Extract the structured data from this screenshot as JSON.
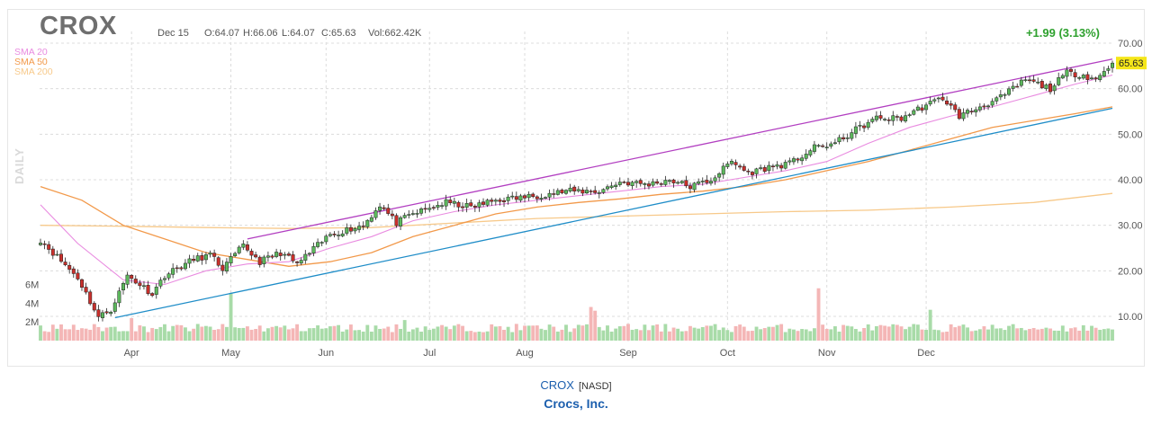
{
  "header": {
    "ticker": "CROX",
    "date": "Dec 15",
    "open": "O:64.07",
    "high": "H:66.06",
    "low": "L:64.07",
    "close": "C:65.63",
    "volume": "Vol:662.42K",
    "change": "+1.99 (3.13%)",
    "last_price": "65.63",
    "interval": "DAILY"
  },
  "legend": {
    "sma20": "SMA 20",
    "sma50": "SMA 50",
    "sma200": "SMA 200"
  },
  "footer": {
    "symbol": "CROX",
    "exchange": "[NASD]",
    "company": "Crocs, Inc."
  },
  "colors": {
    "up": "#5cb85c",
    "down": "#c9302c",
    "sma20": "#e98be0",
    "sma50": "#f2994a",
    "sma200": "#f7c98a",
    "trendUpper": "#b23fc1",
    "trendLower": "#1f8dc8",
    "volUp": "#a8dba8",
    "volDown": "#f4b6b6",
    "change": "#2ea12e",
    "lastPriceBg": "#f5e61a"
  },
  "chart_data": {
    "type": "candlestick",
    "y_axis": {
      "min": 0,
      "max": 70,
      "ticks": [
        "10.00",
        "20.00",
        "30.00",
        "40.00",
        "50.00",
        "60.00",
        "70.00"
      ],
      "position": "right"
    },
    "volume_axis": {
      "ticks": [
        "2M",
        "4M",
        "6M"
      ],
      "position": "left"
    },
    "x_labels": [
      "Apr",
      "May",
      "Jun",
      "Jul",
      "Aug",
      "Sep",
      "Oct",
      "Nov",
      "Dec"
    ],
    "price_keyframes": [
      {
        "t": 0,
        "p": 26.8
      },
      {
        "t": 9,
        "p": 18.5
      },
      {
        "t": 14,
        "p": 9.8
      },
      {
        "t": 17,
        "p": 11.5
      },
      {
        "t": 21,
        "p": 19
      },
      {
        "t": 27,
        "p": 15
      },
      {
        "t": 30,
        "p": 19
      },
      {
        "t": 37,
        "p": 22.5
      },
      {
        "t": 41,
        "p": 23.5
      },
      {
        "t": 44,
        "p": 20.5
      },
      {
        "t": 49,
        "p": 25.5
      },
      {
        "t": 53,
        "p": 22
      },
      {
        "t": 58,
        "p": 24
      },
      {
        "t": 62,
        "p": 21.5
      },
      {
        "t": 70,
        "p": 28
      },
      {
        "t": 74,
        "p": 29
      },
      {
        "t": 78,
        "p": 30
      },
      {
        "t": 82,
        "p": 34.5
      },
      {
        "t": 86,
        "p": 30.5
      },
      {
        "t": 90,
        "p": 32.5
      },
      {
        "t": 98,
        "p": 35
      },
      {
        "t": 104,
        "p": 34
      },
      {
        "t": 110,
        "p": 35.5
      },
      {
        "t": 120,
        "p": 36.5
      },
      {
        "t": 127,
        "p": 37.5
      },
      {
        "t": 135,
        "p": 37.5
      },
      {
        "t": 140,
        "p": 39.5
      },
      {
        "t": 147,
        "p": 39
      },
      {
        "t": 152,
        "p": 40
      },
      {
        "t": 157,
        "p": 38.5
      },
      {
        "t": 162,
        "p": 40
      },
      {
        "t": 167,
        "p": 44
      },
      {
        "t": 171,
        "p": 41.5
      },
      {
        "t": 177,
        "p": 43
      },
      {
        "t": 181,
        "p": 43.5
      },
      {
        "t": 187,
        "p": 47
      },
      {
        "t": 192,
        "p": 48
      },
      {
        "t": 197,
        "p": 51
      },
      {
        "t": 202,
        "p": 53.5
      },
      {
        "t": 208,
        "p": 53.5
      },
      {
        "t": 212,
        "p": 55.5
      },
      {
        "t": 218,
        "p": 58
      },
      {
        "t": 222,
        "p": 54
      },
      {
        "t": 227,
        "p": 56
      },
      {
        "t": 232,
        "p": 58
      },
      {
        "t": 238,
        "p": 62
      },
      {
        "t": 244,
        "p": 60
      },
      {
        "t": 248,
        "p": 63.5
      },
      {
        "t": 252,
        "p": 63
      },
      {
        "t": 255,
        "p": 62
      },
      {
        "t": 259,
        "p": 65.63
      }
    ],
    "sma20": [
      [
        0,
        34.5
      ],
      [
        9,
        26
      ],
      [
        20,
        18
      ],
      [
        30,
        17
      ],
      [
        40,
        20
      ],
      [
        50,
        21.5
      ],
      [
        60,
        22
      ],
      [
        70,
        25
      ],
      [
        80,
        27.5
      ],
      [
        90,
        31
      ],
      [
        100,
        33
      ],
      [
        110,
        34.5
      ],
      [
        120,
        35.5
      ],
      [
        130,
        36.5
      ],
      [
        140,
        37.5
      ],
      [
        150,
        38.5
      ],
      [
        160,
        39
      ],
      [
        170,
        40.5
      ],
      [
        180,
        42
      ],
      [
        190,
        44
      ],
      [
        200,
        48
      ],
      [
        210,
        51.5
      ],
      [
        220,
        54
      ],
      [
        230,
        56
      ],
      [
        240,
        58.5
      ],
      [
        250,
        61
      ],
      [
        259,
        63
      ]
    ],
    "sma50": [
      [
        0,
        38.5
      ],
      [
        10,
        35.5
      ],
      [
        20,
        30
      ],
      [
        30,
        27
      ],
      [
        40,
        24
      ],
      [
        50,
        22.5
      ],
      [
        60,
        21
      ],
      [
        70,
        22
      ],
      [
        80,
        24
      ],
      [
        90,
        27.5
      ],
      [
        100,
        30
      ],
      [
        110,
        32.5
      ],
      [
        120,
        34
      ],
      [
        130,
        35
      ],
      [
        140,
        35.8
      ],
      [
        150,
        36.8
      ],
      [
        160,
        37.5
      ],
      [
        170,
        38.5
      ],
      [
        180,
        40
      ],
      [
        190,
        42
      ],
      [
        200,
        44
      ],
      [
        210,
        46.5
      ],
      [
        220,
        49
      ],
      [
        230,
        51.5
      ],
      [
        240,
        53
      ],
      [
        250,
        54.5
      ],
      [
        259,
        56
      ]
    ],
    "sma200": [
      [
        0,
        30
      ],
      [
        20,
        29.8
      ],
      [
        40,
        29.5
      ],
      [
        60,
        29.3
      ],
      [
        80,
        29.5
      ],
      [
        100,
        30.5
      ],
      [
        120,
        31.5
      ],
      [
        140,
        32
      ],
      [
        160,
        32.5
      ],
      [
        180,
        33
      ],
      [
        200,
        33.3
      ],
      [
        220,
        34
      ],
      [
        240,
        35
      ],
      [
        259,
        37
      ]
    ],
    "channel_upper": [
      [
        50,
        27
      ],
      [
        259,
        66.5
      ]
    ],
    "channel_lower": [
      [
        18,
        9.7
      ],
      [
        259,
        55.7
      ]
    ],
    "volume_spikes": [
      {
        "t": 46,
        "v": 5.1
      },
      {
        "t": 133,
        "v": 3.6
      },
      {
        "t": 134,
        "v": 3.2
      },
      {
        "t": 188,
        "v": 5.6
      },
      {
        "t": 215,
        "v": 3.3
      },
      {
        "t": 22,
        "v": 2.4
      },
      {
        "t": 88,
        "v": 2.2
      }
    ]
  }
}
